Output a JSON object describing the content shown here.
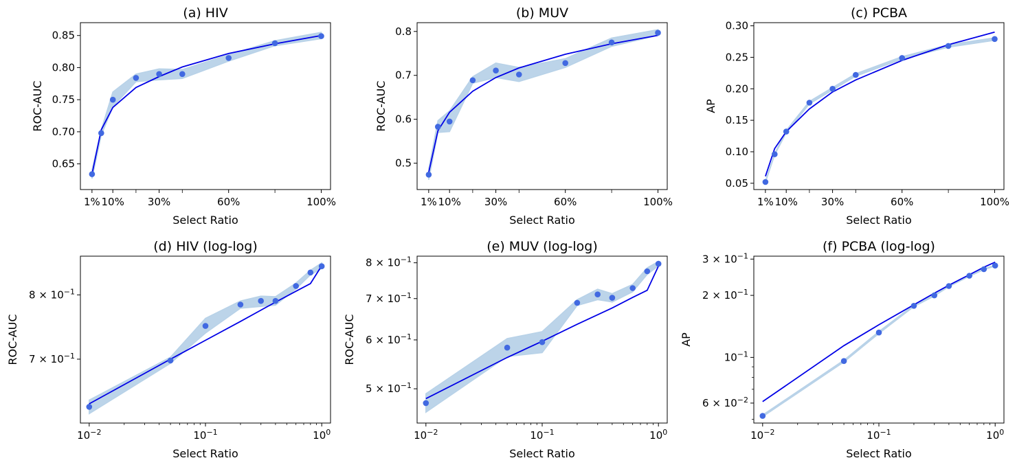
{
  "chart_data": [
    {
      "type": "line",
      "title": "(a) HIV",
      "xlabel": "Select Ratio",
      "ylabel": "ROC-AUC",
      "xscale": "linear",
      "yscale": "linear",
      "xlim": [
        -0.04,
        1.04
      ],
      "ylim": [
        0.61,
        0.87
      ],
      "xticks": [
        {
          "v": 0.01,
          "label": "1%"
        },
        {
          "v": 0.1,
          "label": "10%"
        },
        {
          "v": 0.3,
          "label": "30%"
        },
        {
          "v": 0.6,
          "label": "60%"
        },
        {
          "v": 1.0,
          "label": "100%"
        }
      ],
      "xminor": [
        0.2,
        0.4,
        0.8
      ],
      "yticks": [
        {
          "v": 0.65,
          "label": "0.65"
        },
        {
          "v": 0.7,
          "label": "0.70"
        },
        {
          "v": 0.75,
          "label": "0.75"
        },
        {
          "v": 0.8,
          "label": "0.80"
        },
        {
          "v": 0.85,
          "label": "0.85"
        }
      ],
      "x": [
        0.01,
        0.05,
        0.1,
        0.2,
        0.3,
        0.4,
        0.6,
        0.8,
        1.0
      ],
      "points": [
        0.634,
        0.698,
        0.75,
        0.784,
        0.79,
        0.79,
        0.815,
        0.838,
        0.849
      ],
      "band_lower": [
        0.627,
        0.694,
        0.739,
        0.778,
        0.781,
        0.783,
        0.81,
        0.834,
        0.845
      ],
      "band_upper": [
        0.641,
        0.703,
        0.762,
        0.79,
        0.798,
        0.797,
        0.82,
        0.842,
        0.855
      ],
      "fit": [
        0.634,
        0.703,
        0.738,
        0.769,
        0.786,
        0.801,
        0.822,
        0.837,
        0.85
      ]
    },
    {
      "type": "line",
      "title": "(b) MUV",
      "xlabel": "Select Ratio",
      "ylabel": "ROC-AUC",
      "xscale": "linear",
      "yscale": "linear",
      "xlim": [
        -0.04,
        1.04
      ],
      "ylim": [
        0.44,
        0.82
      ],
      "xticks": [
        {
          "v": 0.01,
          "label": "1%"
        },
        {
          "v": 0.1,
          "label": "10%"
        },
        {
          "v": 0.3,
          "label": "30%"
        },
        {
          "v": 0.6,
          "label": "60%"
        },
        {
          "v": 1.0,
          "label": "100%"
        }
      ],
      "xminor": [
        0.2,
        0.4,
        0.8
      ],
      "yticks": [
        {
          "v": 0.5,
          "label": "0.5"
        },
        {
          "v": 0.6,
          "label": "0.6"
        },
        {
          "v": 0.7,
          "label": "0.7"
        },
        {
          "v": 0.8,
          "label": "0.8"
        }
      ],
      "x": [
        0.01,
        0.05,
        0.1,
        0.2,
        0.3,
        0.4,
        0.6,
        0.8,
        1.0
      ],
      "points": [
        0.474,
        0.583,
        0.595,
        0.689,
        0.711,
        0.702,
        0.728,
        0.775,
        0.797
      ],
      "band_lower": [
        0.462,
        0.57,
        0.572,
        0.682,
        0.695,
        0.686,
        0.718,
        0.766,
        0.791
      ],
      "band_upper": [
        0.487,
        0.597,
        0.619,
        0.697,
        0.728,
        0.718,
        0.738,
        0.785,
        0.804
      ],
      "fit": [
        0.479,
        0.574,
        0.616,
        0.664,
        0.695,
        0.717,
        0.748,
        0.772,
        0.791
      ]
    },
    {
      "type": "line",
      "title": "(c) PCBA",
      "xlabel": "Select Ratio",
      "ylabel": "AP",
      "xscale": "linear",
      "yscale": "linear",
      "xlim": [
        -0.04,
        1.04
      ],
      "ylim": [
        0.04,
        0.305
      ],
      "xticks": [
        {
          "v": 0.01,
          "label": "1%"
        },
        {
          "v": 0.1,
          "label": "10%"
        },
        {
          "v": 0.3,
          "label": "30%"
        },
        {
          "v": 0.6,
          "label": "60%"
        },
        {
          "v": 1.0,
          "label": "100%"
        }
      ],
      "xminor": [
        0.2,
        0.4,
        0.8
      ],
      "yticks": [
        {
          "v": 0.05,
          "label": "0.05"
        },
        {
          "v": 0.1,
          "label": "0.10"
        },
        {
          "v": 0.15,
          "label": "0.15"
        },
        {
          "v": 0.2,
          "label": "0.20"
        },
        {
          "v": 0.25,
          "label": "0.25"
        },
        {
          "v": 0.3,
          "label": "0.30"
        }
      ],
      "x": [
        0.01,
        0.05,
        0.1,
        0.2,
        0.3,
        0.4,
        0.6,
        0.8,
        1.0
      ],
      "points": [
        0.052,
        0.096,
        0.132,
        0.178,
        0.2,
        0.222,
        0.249,
        0.268,
        0.279
      ],
      "band_lower": [
        0.051,
        0.095,
        0.13,
        0.176,
        0.198,
        0.22,
        0.247,
        0.266,
        0.277
      ],
      "band_upper": [
        0.054,
        0.097,
        0.134,
        0.18,
        0.202,
        0.224,
        0.251,
        0.27,
        0.281
      ],
      "fit": [
        0.061,
        0.105,
        0.132,
        0.168,
        0.195,
        0.214,
        0.245,
        0.27,
        0.29
      ]
    },
    {
      "type": "line",
      "title": "(d) HIV (log-log)",
      "xlabel": "Select Ratio",
      "ylabel": "ROC-AUC",
      "xscale": "log",
      "yscale": "log",
      "xlim": [
        0.0084,
        1.19
      ],
      "ylim": [
        0.613,
        0.867
      ],
      "xticks": [
        {
          "v": 0.01,
          "label": "10",
          "exp": "−2"
        },
        {
          "v": 0.1,
          "label": "10",
          "exp": "−1"
        },
        {
          "v": 1.0,
          "label": "10",
          "exp": "0"
        }
      ],
      "xminor": [
        0.02,
        0.03,
        0.04,
        0.05,
        0.06,
        0.07,
        0.08,
        0.09,
        0.2,
        0.3,
        0.4,
        0.5,
        0.6,
        0.7,
        0.8,
        0.9
      ],
      "yticks": [
        {
          "v": 0.7,
          "label": "7 × 10",
          "exp": "−1"
        },
        {
          "v": 0.8,
          "label": "8 × 10",
          "exp": "−1"
        }
      ],
      "yminor": [],
      "x": [
        0.01,
        0.05,
        0.1,
        0.2,
        0.3,
        0.4,
        0.6,
        0.8,
        1.0
      ],
      "points": [
        0.634,
        0.698,
        0.75,
        0.784,
        0.79,
        0.79,
        0.815,
        0.838,
        0.849
      ],
      "band_lower": [
        0.625,
        0.694,
        0.739,
        0.778,
        0.781,
        0.783,
        0.81,
        0.834,
        0.845
      ],
      "band_upper": [
        0.643,
        0.703,
        0.762,
        0.79,
        0.798,
        0.797,
        0.82,
        0.842,
        0.855
      ],
      "fit": [
        0.638,
        0.7,
        0.728,
        0.757,
        0.775,
        0.788,
        0.806,
        0.819,
        0.85
      ]
    },
    {
      "type": "line",
      "title": "(e) MUV (log-log)",
      "xlabel": "Select Ratio",
      "ylabel": "ROC-AUC",
      "xscale": "log",
      "yscale": "log",
      "xlim": [
        0.0084,
        1.19
      ],
      "ylim": [
        0.44,
        0.82
      ],
      "xticks": [
        {
          "v": 0.01,
          "label": "10",
          "exp": "−2"
        },
        {
          "v": 0.1,
          "label": "10",
          "exp": "−1"
        },
        {
          "v": 1.0,
          "label": "10",
          "exp": "0"
        }
      ],
      "xminor": [
        0.02,
        0.03,
        0.04,
        0.05,
        0.06,
        0.07,
        0.08,
        0.09,
        0.2,
        0.3,
        0.4,
        0.5,
        0.6,
        0.7,
        0.8,
        0.9
      ],
      "yticks": [
        {
          "v": 0.5,
          "label": "5 × 10",
          "exp": "−1"
        },
        {
          "v": 0.6,
          "label": "6 × 10",
          "exp": "−1"
        },
        {
          "v": 0.7,
          "label": "7 × 10",
          "exp": "−1"
        },
        {
          "v": 0.8,
          "label": "8 × 10",
          "exp": "−1"
        }
      ],
      "yminor": [],
      "x": [
        0.01,
        0.05,
        0.1,
        0.2,
        0.3,
        0.4,
        0.6,
        0.8,
        1.0
      ],
      "points": [
        0.474,
        0.583,
        0.595,
        0.689,
        0.711,
        0.702,
        0.728,
        0.775,
        0.797
      ],
      "band_lower": [
        0.458,
        0.564,
        0.572,
        0.682,
        0.697,
        0.691,
        0.718,
        0.766,
        0.791
      ],
      "band_upper": [
        0.491,
        0.603,
        0.619,
        0.697,
        0.725,
        0.713,
        0.738,
        0.785,
        0.804
      ],
      "fit": [
        0.482,
        0.562,
        0.597,
        0.636,
        0.659,
        0.676,
        0.703,
        0.722,
        0.79
      ]
    },
    {
      "type": "line",
      "title": "(f) PCBA (log-log)",
      "xlabel": "Select Ratio",
      "ylabel": "AP",
      "xscale": "log",
      "yscale": "log",
      "xlim": [
        0.0084,
        1.19
      ],
      "ylim": [
        0.048,
        0.31
      ],
      "xticks": [
        {
          "v": 0.01,
          "label": "10",
          "exp": "−2"
        },
        {
          "v": 0.1,
          "label": "10",
          "exp": "−1"
        },
        {
          "v": 1.0,
          "label": "10",
          "exp": "0"
        }
      ],
      "xminor": [
        0.02,
        0.03,
        0.04,
        0.05,
        0.06,
        0.07,
        0.08,
        0.09,
        0.2,
        0.3,
        0.4,
        0.5,
        0.6,
        0.7,
        0.8,
        0.9
      ],
      "yticks": [
        {
          "v": 0.06,
          "label": "6 × 10",
          "exp": "−2"
        },
        {
          "v": 0.1,
          "label": "10",
          "exp": "−1"
        },
        {
          "v": 0.2,
          "label": "2 × 10",
          "exp": "−1"
        },
        {
          "v": 0.3,
          "label": "3 × 10",
          "exp": "−1"
        }
      ],
      "yminor": [
        0.05,
        0.07,
        0.08,
        0.09
      ],
      "x": [
        0.01,
        0.05,
        0.1,
        0.2,
        0.3,
        0.4,
        0.6,
        0.8,
        1.0
      ],
      "points": [
        0.052,
        0.096,
        0.132,
        0.178,
        0.2,
        0.222,
        0.249,
        0.268,
        0.279
      ],
      "band_lower": [
        0.0515,
        0.095,
        0.1305,
        0.1765,
        0.1985,
        0.2205,
        0.2475,
        0.2665,
        0.2775
      ],
      "band_upper": [
        0.0525,
        0.097,
        0.1335,
        0.1795,
        0.2015,
        0.2235,
        0.2505,
        0.2695,
        0.2805
      ],
      "fit": [
        0.061,
        0.114,
        0.144,
        0.18,
        0.205,
        0.224,
        0.252,
        0.274,
        0.29
      ]
    }
  ],
  "colors": {
    "points": "#4169e1",
    "fit": "#0000e6",
    "band": "#b8d2e8"
  }
}
